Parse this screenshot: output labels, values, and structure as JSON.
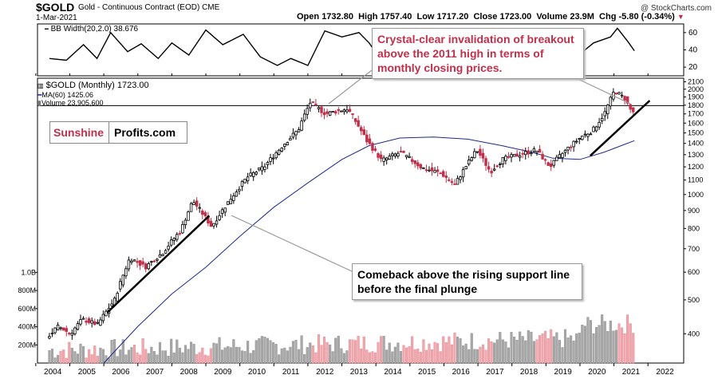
{
  "header": {
    "symbol": "$GOLD",
    "name": "Gold - Continuous Contract (EOD)",
    "exchange": "CME",
    "date": "1-Mar-2021",
    "open_label": "Open",
    "open": "1732.80",
    "high_label": "High",
    "high": "1757.40",
    "low_label": "Low",
    "low": "1717.20",
    "close_label": "Close",
    "close": "1723.00",
    "volume_label": "Volume",
    "volume": "23.9M",
    "chg_label": "Chg",
    "chg": "-5.80 (-0.34%)",
    "credit": "@ StockCharts.com"
  },
  "bb_panel": {
    "legend": "BB Width(20,2.0) 38.676",
    "ticks": [
      "60",
      "40",
      "20"
    ]
  },
  "price_panel": {
    "legend_price": "$GOLD (Monthly) 1723.00",
    "legend_ma": "MA(60) 1425.06",
    "legend_volume": "Volume 23,905,600"
  },
  "logo": {
    "part1": "Sunshine",
    "part2": "Profits.com"
  },
  "callouts": {
    "top": "Crystal-clear invalidation of breakout above the 2011 high in terms of monthly closing prices.",
    "bottom": "Comeback above the rising support line before the final plunge"
  },
  "colors": {
    "up": "#000000",
    "down": "#c0304a",
    "ma": "#1a2a8a",
    "vol_up": "#a8a8a8",
    "vol_down": "#f0a8ae",
    "accent": "#c0304a"
  },
  "chart_data": {
    "type": "line",
    "title": "Gold - Continuous Contract (EOD)",
    "x_ticks": [
      "2004",
      "2005",
      "2006",
      "2007",
      "2008",
      "2009",
      "2010",
      "2011",
      "2012",
      "2013",
      "2014",
      "2015",
      "2016",
      "2017",
      "2018",
      "2019",
      "2020",
      "2021",
      "2022"
    ],
    "y_scale": "log",
    "y_ticks": [
      400,
      500,
      600,
      700,
      800,
      900,
      1000,
      1100,
      1200,
      1300,
      1400,
      1500,
      1600,
      1700,
      1800,
      1900,
      2000,
      2100
    ],
    "y_range": [
      330,
      2150
    ],
    "volume_ticks": [
      "200M",
      "400M",
      "600M",
      "800M",
      "1.0B"
    ],
    "volume_range_M": [
      0,
      1100
    ],
    "resistance_level": 1795,
    "price_anchors": [
      [
        2003.9,
        390
      ],
      [
        2004.25,
        420
      ],
      [
        2004.6,
        400
      ],
      [
        2004.95,
        440
      ],
      [
        2005.4,
        425
      ],
      [
        2005.9,
        500
      ],
      [
        2006.35,
        660
      ],
      [
        2006.8,
        620
      ],
      [
        2007.3,
        680
      ],
      [
        2007.85,
        790
      ],
      [
        2008.2,
        960
      ],
      [
        2008.75,
        810
      ],
      [
        2009.2,
        940
      ],
      [
        2009.8,
        1120
      ],
      [
        2010.3,
        1200
      ],
      [
        2010.9,
        1400
      ],
      [
        2011.3,
        1530
      ],
      [
        2011.65,
        1830
      ],
      [
        2012.1,
        1700
      ],
      [
        2012.75,
        1760
      ],
      [
        2013.3,
        1430
      ],
      [
        2013.75,
        1250
      ],
      [
        2014.3,
        1320
      ],
      [
        2014.95,
        1190
      ],
      [
        2015.5,
        1150
      ],
      [
        2015.9,
        1065
      ],
      [
        2016.55,
        1340
      ],
      [
        2016.95,
        1160
      ],
      [
        2017.3,
        1260
      ],
      [
        2017.9,
        1310
      ],
      [
        2018.3,
        1340
      ],
      [
        2018.7,
        1200
      ],
      [
        2019.1,
        1320
      ],
      [
        2019.65,
        1470
      ],
      [
        2019.95,
        1520
      ],
      [
        2020.3,
        1700
      ],
      [
        2020.6,
        1980
      ],
      [
        2020.9,
        1880
      ],
      [
        2021.1,
        1723
      ]
    ],
    "ma60_anchors": [
      [
        2005.5,
        330
      ],
      [
        2006.5,
        420
      ],
      [
        2007.5,
        520
      ],
      [
        2008.5,
        620
      ],
      [
        2009.5,
        760
      ],
      [
        2010.5,
        920
      ],
      [
        2011.5,
        1080
      ],
      [
        2012.5,
        1260
      ],
      [
        2013.3,
        1380
      ],
      [
        2014.2,
        1450
      ],
      [
        2015.2,
        1460
      ],
      [
        2016.2,
        1440
      ],
      [
        2017.2,
        1380
      ],
      [
        2018.1,
        1320
      ],
      [
        2018.7,
        1270
      ],
      [
        2019.5,
        1260
      ],
      [
        2020.2,
        1320
      ],
      [
        2020.8,
        1390
      ],
      [
        2021.1,
        1425
      ]
    ],
    "bb_width_anchors": [
      [
        2003.9,
        30
      ],
      [
        2004.4,
        28
      ],
      [
        2004.9,
        46
      ],
      [
        2005.3,
        30
      ],
      [
        2005.7,
        60
      ],
      [
        2006.2,
        38
      ],
      [
        2006.6,
        47
      ],
      [
        2007.1,
        30
      ],
      [
        2007.5,
        48
      ],
      [
        2008.0,
        34
      ],
      [
        2008.5,
        63
      ],
      [
        2009.0,
        46
      ],
      [
        2009.6,
        58
      ],
      [
        2010.1,
        32
      ],
      [
        2010.6,
        22
      ],
      [
        2011.0,
        30
      ],
      [
        2011.5,
        22
      ],
      [
        2012.0,
        62
      ],
      [
        2012.5,
        55
      ],
      [
        2013.0,
        60
      ],
      [
        2013.3,
        48
      ],
      [
        2013.8,
        20
      ],
      [
        2014.4,
        35
      ],
      [
        2014.9,
        20
      ],
      [
        2015.4,
        24
      ],
      [
        2015.9,
        18
      ],
      [
        2016.4,
        36
      ],
      [
        2016.9,
        55
      ],
      [
        2017.4,
        40
      ],
      [
        2017.9,
        22
      ],
      [
        2018.4,
        30
      ],
      [
        2018.9,
        18
      ],
      [
        2019.4,
        32
      ],
      [
        2019.9,
        48
      ],
      [
        2020.4,
        55
      ],
      [
        2020.6,
        65
      ],
      [
        2020.9,
        50
      ],
      [
        2021.1,
        39
      ]
    ],
    "support_lines": [
      [
        [
          2005.6,
          460
        ],
        [
          2008.6,
          870
        ]
      ],
      [
        [
          2019.8,
          1290
        ],
        [
          2021.55,
          1855
        ]
      ]
    ]
  }
}
